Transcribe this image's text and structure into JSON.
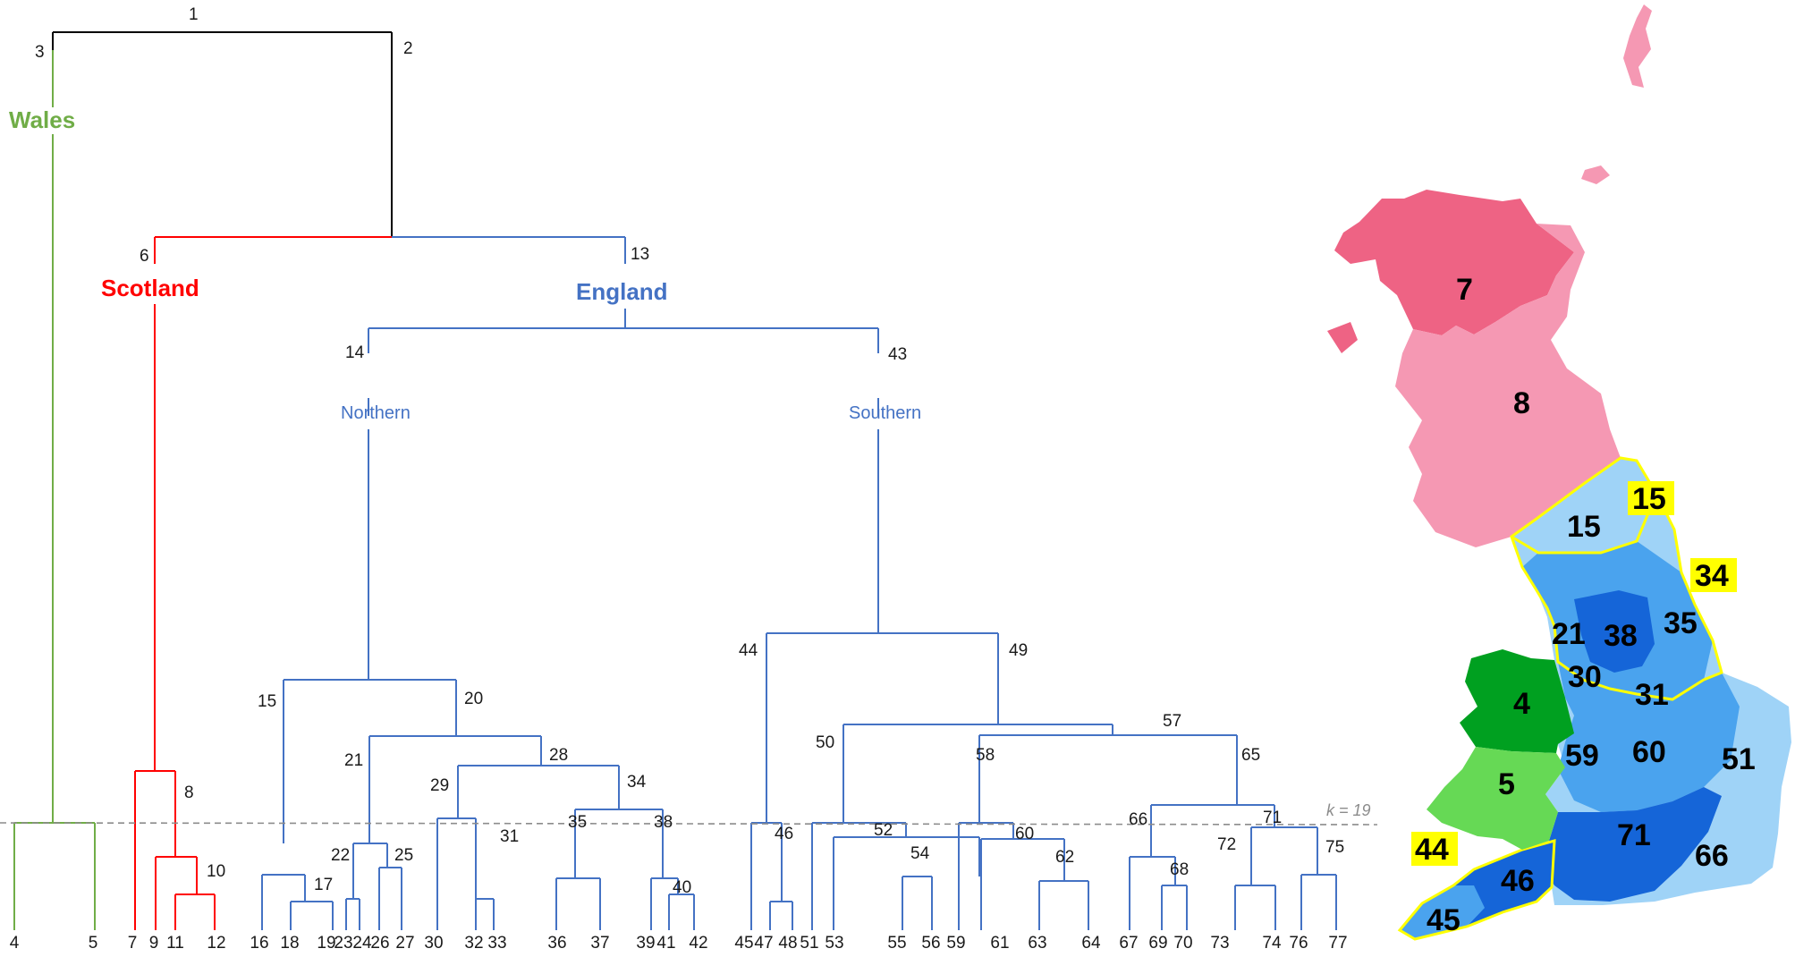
{
  "dendrogram": {
    "root_label": "1",
    "top_nodes": [
      "2",
      "3",
      "6",
      "13",
      "14",
      "43"
    ],
    "group_labels": {
      "wales": "Wales",
      "scotland": "Scotland",
      "england": "England",
      "northern": "Northern",
      "southern": "Southern"
    },
    "cut_label": "k = 19",
    "internal_nodes": [
      "8",
      "10",
      "15",
      "17",
      "20",
      "21",
      "22",
      "25",
      "28",
      "29",
      "31",
      "34",
      "35",
      "38",
      "40",
      "44",
      "46",
      "49",
      "50",
      "52",
      "54",
      "57",
      "58",
      "60",
      "62",
      "65",
      "66",
      "68",
      "71",
      "72",
      "75"
    ],
    "leaves": [
      "4",
      "5",
      "7",
      "9",
      "11",
      "12",
      "16",
      "18",
      "19",
      "23",
      "24",
      "26",
      "27",
      "30",
      "32",
      "33",
      "36",
      "37",
      "39",
      "41",
      "42",
      "45",
      "47",
      "48",
      "51",
      "53",
      "55",
      "56",
      "59",
      "61",
      "63",
      "64",
      "67",
      "69",
      "70",
      "73",
      "74",
      "76",
      "77"
    ],
    "colors": {
      "root": "#000000",
      "wales": "#70ad47",
      "scotland": "#ff0000",
      "england": "#4472c4"
    }
  },
  "map": {
    "region_labels": [
      "7",
      "8",
      "15",
      "21",
      "38",
      "35",
      "30",
      "31",
      "4",
      "59",
      "60",
      "51",
      "5",
      "71",
      "66",
      "46",
      "45"
    ],
    "highlighted_labels": [
      "15",
      "34",
      "44"
    ],
    "colors": {
      "scotland_north": "#ee6384",
      "scotland_south": "#f598b3",
      "wales_north": "#00a020",
      "wales_south": "#66d955",
      "england_light": "#9fd3f7",
      "england_mid": "#4aa3ee",
      "england_dark": "#1565d8",
      "highlight": "#ffff00"
    }
  }
}
